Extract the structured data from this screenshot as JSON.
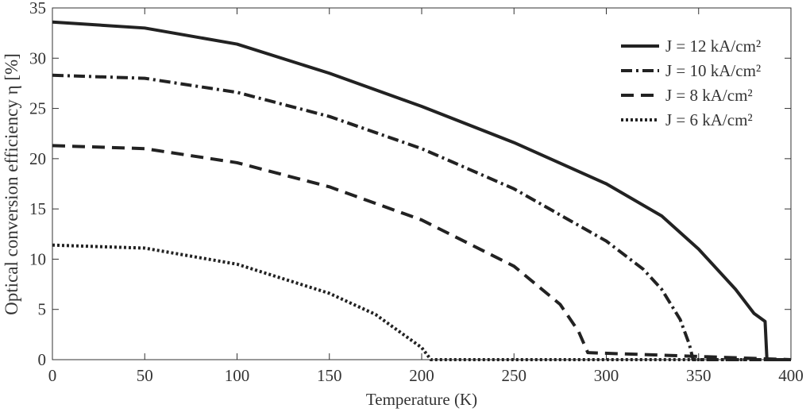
{
  "chart_data": {
    "type": "line",
    "xlabel": "Temperature (K)",
    "ylabel": "Optical conversion efficiency η [%]",
    "xlim": [
      0,
      400
    ],
    "xticks": [
      0,
      50,
      100,
      150,
      200,
      250,
      300,
      350,
      400
    ],
    "ylim": [
      0,
      35
    ],
    "yticks": [
      0,
      5,
      10,
      15,
      20,
      25,
      30,
      35
    ],
    "legend": "upper right",
    "series": [
      {
        "name": "J = 12 kA/cm²",
        "color": "#222222",
        "dash": "solid",
        "x": [
          0,
          50,
          100,
          150,
          200,
          250,
          300,
          330,
          350,
          370,
          380,
          386,
          387,
          400
        ],
        "values": [
          33.6,
          33.0,
          31.4,
          28.5,
          25.2,
          21.6,
          17.5,
          14.3,
          11.0,
          7.0,
          4.6,
          3.8,
          0,
          0
        ]
      },
      {
        "name": "J = 10 kA/cm²",
        "color": "#222222",
        "dash": "dashdot",
        "x": [
          0,
          50,
          100,
          150,
          200,
          250,
          300,
          320,
          330,
          340,
          345,
          347,
          400
        ],
        "values": [
          28.3,
          28.0,
          26.6,
          24.2,
          21.0,
          17.0,
          11.8,
          9.0,
          7.0,
          4.0,
          1.5,
          0,
          0
        ]
      },
      {
        "name": "J = 8 kA/cm²",
        "color": "#222222",
        "dash": "dashed",
        "x": [
          0,
          50,
          100,
          150,
          200,
          250,
          275,
          285,
          290,
          400
        ],
        "values": [
          21.3,
          21.0,
          19.6,
          17.2,
          13.9,
          9.3,
          5.5,
          2.8,
          0.7,
          0
        ]
      },
      {
        "name": "J = 6 kA/cm²",
        "color": "#222222",
        "dash": "dotted",
        "x": [
          0,
          50,
          100,
          150,
          175,
          200,
          205,
          400
        ],
        "values": [
          11.4,
          11.1,
          9.5,
          6.6,
          4.5,
          1.2,
          0,
          0
        ]
      }
    ]
  }
}
